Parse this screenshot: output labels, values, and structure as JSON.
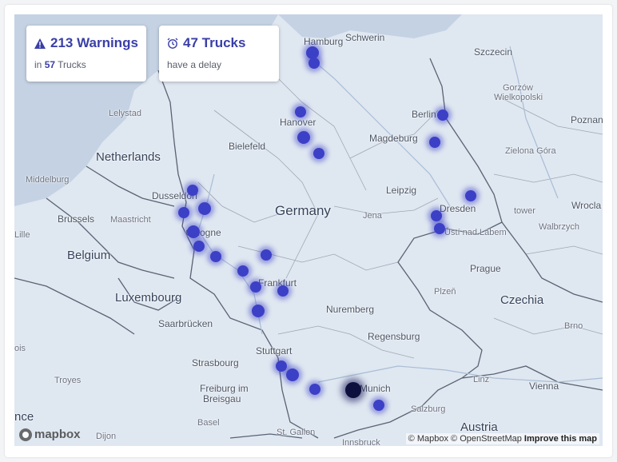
{
  "cards": {
    "warnings": {
      "icon": "warning-icon",
      "title": "213 Warnings",
      "sub_prefix": "in",
      "sub_count": "57",
      "sub_suffix": "Trucks"
    },
    "trucks": {
      "icon": "alarm-clock-icon",
      "title": "47 Trucks",
      "sub": "have a delay"
    }
  },
  "labels": {
    "hamburg": "Hamburg",
    "schwerin": "Schwerin",
    "szczecin": "Szczecin",
    "gorzow": "Gorzów",
    "wielkopolski": "Wielkopolski",
    "lelystad": "Lelystad",
    "hanover": "Hanover",
    "magdeburg": "Magdeburg",
    "berlin": "Berlin",
    "poznan": "Poznan",
    "netherlands": "Netherlands",
    "bielefeld": "Bielefeld",
    "zielona": "Zielona Góra",
    "middelburg": "Middelburg",
    "leipzig": "Leipzig",
    "dusseldorf": "Dusseldorf",
    "germany": "Germany",
    "brussels": "Brussels",
    "maastricht": "Maastricht",
    "jena": "Jena",
    "dresden": "Dresden",
    "wroclaw": "Wrocla",
    "tower": "tower",
    "walbrzych": "Walbrzych",
    "cologne": "Cologne",
    "usti": "Ústí nad Labem",
    "lille": "Lille",
    "belgium": "Belgium",
    "prague": "Prague",
    "frankfurt": "Frankfurt",
    "luxembourg": "Luxembourg",
    "plzen": "Plzeň",
    "czechia": "Czechia",
    "nuremberg": "Nuremberg",
    "saarbrucken": "Saarbrücken",
    "brno": "Brno",
    "regensburg": "Regensburg",
    "stuttgart": "Stuttgart",
    "strasbourg": "Strasbourg",
    "troyes": "Troyes",
    "linz": "Linz",
    "vienna": "Vienna",
    "freiburg1": "Freiburg im",
    "freiburg2": "Breisgau",
    "munich": "Munich",
    "salzburg": "Salzburg",
    "basel": "Basel",
    "austria": "Austria",
    "dijon": "Dijon",
    "stgallen": "St. Gallen",
    "innsbruck": "Innsbruck",
    "france": "nce",
    "ois": "ois"
  },
  "attribution": {
    "mapbox": "© Mapbox",
    "osm": "© OpenStreetMap",
    "improve": "Improve this map"
  },
  "logo": {
    "text": "mapbox",
    "icon": "mapbox-logo-icon"
  },
  "colors": {
    "marker": "#3c40c6",
    "marker_dark": "#0d0f3d",
    "card_title": "#3a3fa7",
    "water": "#b8c8dc",
    "land": "#dfe7f1"
  }
}
